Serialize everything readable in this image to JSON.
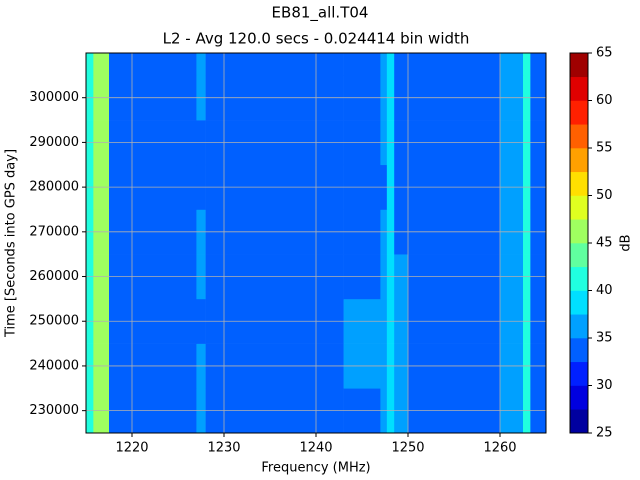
{
  "chart_data": {
    "type": "heatmap",
    "title": "EB81_all.T04",
    "subtitle": "L2 - Avg 120.0 secs - 0.024414 bin width",
    "xlabel": "Frequency (MHz)",
    "ylabel": "Time [Seconds into GPS day]",
    "xbins": [
      1215,
      1215.8,
      1217.5,
      1227,
      1228,
      1243,
      1247,
      1247.7,
      1248.5,
      1250,
      1260,
      1262.5,
      1263.3,
      1265
    ],
    "ybins": [
      225000,
      235000,
      245000,
      255000,
      265000,
      275000,
      285000,
      295000,
      305000,
      310000
    ],
    "values": [
      [
        40,
        47,
        34,
        36,
        34,
        34,
        36,
        38,
        35,
        34,
        37,
        40,
        34
      ],
      [
        40,
        47,
        34,
        36,
        34,
        36,
        36,
        38,
        37,
        34,
        37,
        40,
        34
      ],
      [
        40,
        47,
        34,
        34,
        34,
        35,
        36,
        38,
        37,
        34,
        37,
        40,
        34
      ],
      [
        40,
        47,
        34,
        36,
        34,
        34,
        35,
        38,
        35,
        34,
        37,
        40,
        34
      ],
      [
        40,
        47,
        34,
        36,
        34,
        34,
        35,
        38,
        34,
        34,
        37,
        40,
        34
      ],
      [
        40,
        47,
        34,
        34,
        34,
        34,
        34,
        38,
        34,
        34,
        37,
        40,
        34
      ],
      [
        40,
        47,
        34,
        34,
        34,
        34,
        35,
        38,
        34,
        34,
        37,
        40,
        34
      ],
      [
        40,
        47,
        34,
        36,
        34,
        34,
        35,
        38,
        34,
        34,
        37,
        40,
        34
      ],
      [
        40,
        47,
        34,
        36,
        34,
        34,
        35,
        38,
        34,
        34,
        37,
        40,
        34
      ]
    ],
    "xlim": [
      1215,
      1265
    ],
    "ylim": [
      225000,
      310000
    ],
    "xticks": [
      1220,
      1230,
      1240,
      1250,
      1260
    ],
    "yticks": [
      230000,
      240000,
      250000,
      260000,
      270000,
      280000,
      290000,
      300000
    ],
    "grid": true,
    "colorbar": {
      "label": "dB",
      "levels": [
        25,
        27.5,
        30,
        32.5,
        35,
        37.5,
        40,
        42.5,
        45,
        47.5,
        50,
        52.5,
        55,
        57.5,
        60,
        62.5,
        65
      ],
      "colors": [
        "#00009f",
        "#0000df",
        "#0020ff",
        "#0060ff",
        "#00a0ff",
        "#00dfff",
        "#20ffdf",
        "#60ff9f",
        "#9fff60",
        "#dfff20",
        "#ffdf00",
        "#ffa000",
        "#ff6000",
        "#ff2000",
        "#df0000",
        "#9f0000"
      ],
      "ticks": [
        25,
        30,
        35,
        40,
        45,
        50,
        55,
        60,
        65
      ]
    }
  }
}
